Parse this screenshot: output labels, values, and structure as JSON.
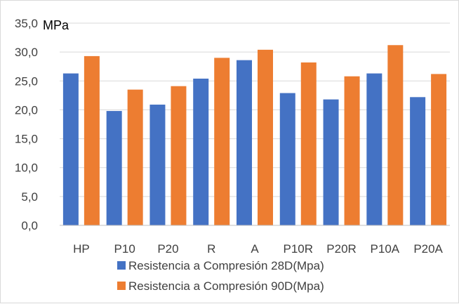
{
  "chart_data": {
    "type": "bar",
    "title": "",
    "unit_label": "MPa",
    "categories": [
      "HP",
      "P10",
      "P20",
      "R",
      "A",
      "P10R",
      "P20R",
      "P10A",
      "P20A"
    ],
    "y_ticks": [
      "0,0",
      "5,0",
      "10,0",
      "15,0",
      "20,0",
      "25,0",
      "30,0",
      "35,0"
    ],
    "ylim": [
      0,
      35
    ],
    "grid": true,
    "legend_position": "bottom",
    "series": [
      {
        "name": "Resistencia a Compresión 28D(Mpa)",
        "color": "#4472c4",
        "values": [
          26.3,
          19.8,
          20.9,
          25.4,
          28.6,
          22.9,
          21.8,
          26.3,
          22.2
        ]
      },
      {
        "name": "Resistencia a Compresión 90D(Mpa)",
        "color": "#ed7d31",
        "values": [
          29.3,
          23.5,
          24.1,
          29.0,
          30.4,
          28.2,
          25.8,
          31.2,
          26.2
        ]
      }
    ]
  }
}
